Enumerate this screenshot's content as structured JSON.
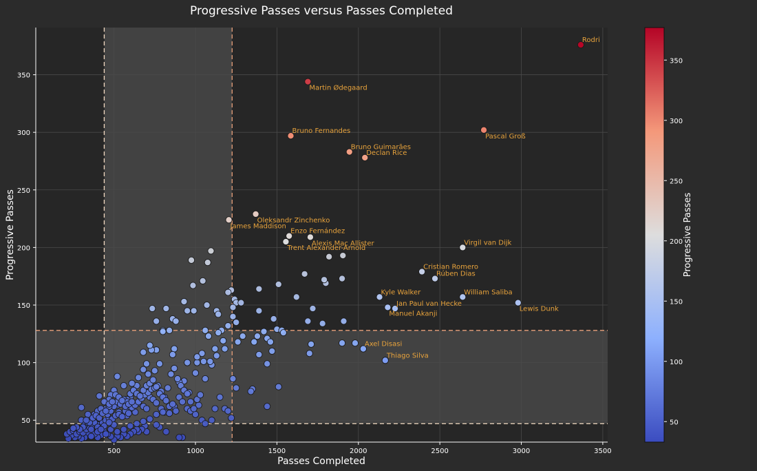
{
  "chart_data": {
    "type": "scatter",
    "title": "Progressive Passes versus Passes Completed",
    "xlabel": "Passes Completed",
    "ylabel": "Progressive Passes",
    "xlim": [
      20,
      3530
    ],
    "ylim": [
      31,
      391
    ],
    "xticks": [
      {
        "value": 500,
        "label": "500"
      },
      {
        "value": 1000,
        "label": "1000"
      },
      {
        "value": 1500,
        "label": "1500"
      },
      {
        "value": 2000,
        "label": "2000"
      },
      {
        "value": 2500,
        "label": "2500"
      },
      {
        "value": 3000,
        "label": "3000"
      },
      {
        "value": 3500,
        "label": "3500"
      }
    ],
    "yticks": [
      {
        "value": 50,
        "label": "50"
      },
      {
        "value": 100,
        "label": "100"
      },
      {
        "value": 150,
        "label": "150"
      },
      {
        "value": 200,
        "label": "200"
      },
      {
        "value": 250,
        "label": "250"
      },
      {
        "value": 300,
        "label": "300"
      },
      {
        "value": 350,
        "label": "350"
      }
    ],
    "grid": true,
    "colormap": "coolwarm",
    "colorbar": {
      "label": "Progressive Passes",
      "range": [
        33,
        377
      ],
      "ticks": [
        {
          "value": 50,
          "label": "50"
        },
        {
          "value": 100,
          "label": "100"
        },
        {
          "value": 150,
          "label": "150"
        },
        {
          "value": 200,
          "label": "200"
        },
        {
          "value": 250,
          "label": "250"
        },
        {
          "value": 300,
          "label": "300"
        },
        {
          "value": 350,
          "label": "350"
        }
      ]
    },
    "reference_lines": {
      "x": [
        440,
        1225
      ],
      "y": [
        47,
        128
      ]
    },
    "colors": {
      "background": "#2b2b2b",
      "plot_background": "#262626",
      "grid": "#4a4a4a",
      "shaded_band": "#5a5a5a",
      "label_text": "#e8a33c",
      "axis_text": "#ffffff",
      "ref_line_x_left": "#f5dcc4",
      "ref_line_other": "#e8a07a"
    },
    "labeled_points": [
      {
        "name": "Rodri",
        "x": 3365,
        "y": 376,
        "pos": "ne"
      },
      {
        "name": "Martin Ødegaard",
        "x": 1690,
        "y": 344,
        "pos": "se"
      },
      {
        "name": "Bruno Fernandes",
        "x": 1585,
        "y": 297,
        "pos": "ne"
      },
      {
        "name": "Pascal Groß",
        "x": 2770,
        "y": 302,
        "pos": "se"
      },
      {
        "name": "Bruno Guimarães",
        "x": 1945,
        "y": 283,
        "pos": "ne"
      },
      {
        "name": "Declan Rice",
        "x": 2040,
        "y": 278,
        "pos": "ne"
      },
      {
        "name": "Oleksandr Zinchenko",
        "x": 1370,
        "y": 229,
        "pos": "se"
      },
      {
        "name": "James Maddison",
        "x": 1205,
        "y": 224,
        "pos": "se"
      },
      {
        "name": "Enzo Fernández",
        "x": 1575,
        "y": 210,
        "pos": "ne"
      },
      {
        "name": "Trent Alexander-Arnold",
        "x": 1555,
        "y": 205,
        "pos": "se"
      },
      {
        "name": "Alexis Mac Allister",
        "x": 1705,
        "y": 209,
        "pos": "se"
      },
      {
        "name": "Virgil van Dijk",
        "x": 2640,
        "y": 200,
        "pos": "ne"
      },
      {
        "name": "Cristian Romero",
        "x": 2390,
        "y": 179,
        "pos": "ne"
      },
      {
        "name": "Rúben Dias",
        "x": 2470,
        "y": 173,
        "pos": "ne"
      },
      {
        "name": "Kyle Walker",
        "x": 2130,
        "y": 157,
        "pos": "ne"
      },
      {
        "name": "William Saliba",
        "x": 2640,
        "y": 157,
        "pos": "ne"
      },
      {
        "name": "Jan Paul van Hecke",
        "x": 2225,
        "y": 147,
        "pos": "ne"
      },
      {
        "name": "Manuel Akanji",
        "x": 2180,
        "y": 148,
        "pos": "se"
      },
      {
        "name": "Lewis Dunk",
        "x": 2980,
        "y": 152,
        "pos": "se"
      },
      {
        "name": "Axel Disasi",
        "x": 2030,
        "y": 112,
        "pos": "ne"
      },
      {
        "name": "Thiago Silva",
        "x": 2165,
        "y": 102,
        "pos": "ne"
      }
    ],
    "points": [
      [
        975,
        189
      ],
      [
        1095,
        197
      ],
      [
        1075,
        187
      ],
      [
        1045,
        171
      ],
      [
        985,
        167
      ],
      [
        1390,
        164
      ],
      [
        1220,
        163
      ],
      [
        1200,
        161
      ],
      [
        1510,
        168
      ],
      [
        1800,
        169
      ],
      [
        1790,
        172
      ],
      [
        1670,
        177
      ],
      [
        1900,
        173
      ],
      [
        1620,
        157
      ],
      [
        1240,
        155
      ],
      [
        1130,
        145
      ],
      [
        1140,
        142
      ],
      [
        1070,
        150
      ],
      [
        950,
        145
      ],
      [
        990,
        145
      ],
      [
        930,
        153
      ],
      [
        820,
        147
      ],
      [
        735,
        147
      ],
      [
        760,
        136
      ],
      [
        800,
        128
      ],
      [
        860,
        138
      ],
      [
        880,
        136
      ],
      [
        1250,
        152
      ],
      [
        1390,
        145
      ],
      [
        1480,
        138
      ],
      [
        1720,
        147
      ],
      [
        1230,
        140
      ],
      [
        1250,
        135
      ],
      [
        1260,
        118
      ],
      [
        1230,
        148
      ],
      [
        1280,
        152
      ],
      [
        1160,
        128
      ],
      [
        1170,
        119
      ],
      [
        1200,
        132
      ],
      [
        1180,
        112
      ],
      [
        1060,
        128
      ],
      [
        1140,
        126
      ],
      [
        1120,
        112
      ],
      [
        1130,
        106
      ],
      [
        1080,
        123
      ],
      [
        1100,
        98
      ],
      [
        1090,
        101
      ],
      [
        1050,
        101
      ],
      [
        1040,
        108
      ],
      [
        1010,
        100
      ],
      [
        1010,
        105
      ],
      [
        1060,
        86
      ],
      [
        1000,
        91
      ],
      [
        950,
        100
      ],
      [
        960,
        74
      ],
      [
        930,
        84
      ],
      [
        900,
        83
      ],
      [
        870,
        112
      ],
      [
        860,
        107
      ],
      [
        840,
        128
      ],
      [
        800,
        127
      ],
      [
        780,
        99
      ],
      [
        760,
        111
      ],
      [
        730,
        111
      ],
      [
        720,
        115
      ],
      [
        680,
        109
      ],
      [
        700,
        99
      ],
      [
        710,
        90
      ],
      [
        750,
        93
      ],
      [
        680,
        94
      ],
      [
        650,
        87
      ],
      [
        640,
        80
      ],
      [
        610,
        82
      ],
      [
        620,
        75
      ],
      [
        600,
        70
      ],
      [
        560,
        80
      ],
      [
        580,
        68
      ],
      [
        520,
        88
      ],
      [
        500,
        76
      ],
      [
        480,
        72
      ],
      [
        470,
        68
      ],
      [
        450,
        60
      ],
      [
        490,
        60
      ],
      [
        520,
        63
      ],
      [
        530,
        57
      ],
      [
        550,
        54
      ],
      [
        580,
        54
      ],
      [
        600,
        60
      ],
      [
        630,
        57
      ],
      [
        650,
        65
      ],
      [
        680,
        62
      ],
      [
        700,
        60
      ],
      [
        720,
        70
      ],
      [
        740,
        68
      ],
      [
        760,
        65
      ],
      [
        790,
        60
      ],
      [
        810,
        57
      ],
      [
        840,
        56
      ],
      [
        870,
        62
      ],
      [
        900,
        70
      ],
      [
        920,
        66
      ],
      [
        950,
        60
      ],
      [
        970,
        58
      ],
      [
        1000,
        55
      ],
      [
        1020,
        63
      ],
      [
        1040,
        50
      ],
      [
        1060,
        47
      ],
      [
        1100,
        50
      ],
      [
        1120,
        60
      ],
      [
        1150,
        70
      ],
      [
        1180,
        60
      ],
      [
        1200,
        58
      ],
      [
        1220,
        52
      ],
      [
        1230,
        86
      ],
      [
        1250,
        78
      ],
      [
        1290,
        123
      ],
      [
        1360,
        118
      ],
      [
        1350,
        77
      ],
      [
        1340,
        75
      ],
      [
        1390,
        107
      ],
      [
        1420,
        127
      ],
      [
        1440,
        121
      ],
      [
        1460,
        118
      ],
      [
        1470,
        110
      ],
      [
        1500,
        129
      ],
      [
        1530,
        128
      ],
      [
        1540,
        126
      ],
      [
        1440,
        99
      ],
      [
        1440,
        62
      ],
      [
        1510,
        79
      ],
      [
        1780,
        134
      ],
      [
        1900,
        117
      ],
      [
        1980,
        117
      ],
      [
        1910,
        136
      ],
      [
        1690,
        136
      ],
      [
        1710,
        116
      ],
      [
        1700,
        108
      ],
      [
        1380,
        123
      ],
      [
        920,
        35
      ],
      [
        900,
        35
      ],
      [
        820,
        40
      ],
      [
        780,
        44
      ],
      [
        760,
        46
      ],
      [
        700,
        40
      ],
      [
        690,
        45
      ],
      [
        670,
        42
      ],
      [
        650,
        40
      ],
      [
        640,
        42
      ],
      [
        620,
        40
      ],
      [
        600,
        38
      ],
      [
        580,
        36
      ],
      [
        560,
        38
      ],
      [
        540,
        35
      ],
      [
        520,
        36
      ],
      [
        500,
        33
      ],
      [
        480,
        36
      ],
      [
        460,
        38
      ],
      [
        440,
        40
      ],
      [
        420,
        37
      ],
      [
        400,
        35
      ],
      [
        380,
        38
      ],
      [
        360,
        36
      ],
      [
        340,
        38
      ],
      [
        320,
        35
      ],
      [
        300,
        34
      ],
      [
        280,
        36
      ],
      [
        260,
        35
      ],
      [
        240,
        37
      ],
      [
        220,
        34
      ],
      [
        210,
        38
      ],
      [
        230,
        40
      ],
      [
        250,
        41
      ],
      [
        270,
        38
      ],
      [
        290,
        40
      ],
      [
        310,
        39
      ],
      [
        330,
        42
      ],
      [
        350,
        44
      ],
      [
        370,
        45
      ],
      [
        390,
        47
      ],
      [
        410,
        46
      ],
      [
        430,
        48
      ],
      [
        450,
        50
      ],
      [
        470,
        52
      ],
      [
        490,
        51
      ],
      [
        510,
        54
      ],
      [
        530,
        55
      ],
      [
        550,
        53
      ],
      [
        570,
        58
      ],
      [
        590,
        56
      ],
      [
        610,
        61
      ],
      [
        630,
        63
      ],
      [
        650,
        66
      ],
      [
        670,
        69
      ],
      [
        690,
        72
      ],
      [
        710,
        74
      ],
      [
        730,
        77
      ],
      [
        750,
        78
      ],
      [
        770,
        80
      ],
      [
        790,
        75
      ],
      [
        810,
        70
      ],
      [
        830,
        78
      ],
      [
        850,
        90
      ],
      [
        870,
        95
      ],
      [
        890,
        86
      ],
      [
        910,
        80
      ],
      [
        930,
        76
      ],
      [
        950,
        73
      ],
      [
        970,
        66
      ],
      [
        990,
        60
      ],
      [
        1010,
        68
      ],
      [
        1030,
        72
      ],
      [
        300,
        50
      ],
      [
        320,
        46
      ],
      [
        340,
        48
      ],
      [
        360,
        52
      ],
      [
        380,
        55
      ],
      [
        400,
        58
      ],
      [
        420,
        60
      ],
      [
        300,
        61
      ],
      [
        340,
        55
      ],
      [
        380,
        48
      ],
      [
        360,
        42
      ],
      [
        400,
        44
      ],
      [
        440,
        45
      ],
      [
        460,
        55
      ],
      [
        480,
        58
      ],
      [
        500,
        62
      ],
      [
        520,
        66
      ],
      [
        540,
        64
      ],
      [
        560,
        68
      ],
      [
        580,
        66
      ],
      [
        600,
        73
      ],
      [
        620,
        76
      ],
      [
        640,
        73
      ],
      [
        660,
        71
      ],
      [
        680,
        76
      ],
      [
        700,
        80
      ],
      [
        720,
        82
      ],
      [
        740,
        85
      ],
      [
        760,
        79
      ],
      [
        780,
        73
      ],
      [
        800,
        70
      ],
      [
        820,
        67
      ],
      [
        840,
        62
      ],
      [
        860,
        64
      ],
      [
        880,
        58
      ],
      [
        410,
        71
      ],
      [
        440,
        66
      ],
      [
        470,
        62
      ],
      [
        350,
        48
      ],
      [
        330,
        50
      ],
      [
        310,
        44
      ],
      [
        290,
        42
      ],
      [
        270,
        44
      ],
      [
        250,
        43
      ],
      [
        370,
        52
      ],
      [
        390,
        54
      ],
      [
        410,
        52
      ],
      [
        430,
        56
      ],
      [
        450,
        58
      ],
      [
        470,
        64
      ],
      [
        490,
        66
      ],
      [
        510,
        72
      ],
      [
        530,
        70
      ],
      [
        550,
        67
      ],
      [
        570,
        62
      ],
      [
        590,
        64
      ],
      [
        610,
        66
      ],
      [
        360,
        36
      ],
      [
        400,
        40
      ],
      [
        520,
        40
      ],
      [
        560,
        42
      ],
      [
        600,
        45
      ],
      [
        640,
        47
      ],
      [
        680,
        49
      ],
      [
        720,
        51
      ],
      [
        760,
        55
      ],
      [
        800,
        57
      ],
      [
        420,
        42
      ],
      [
        450,
        38
      ],
      [
        480,
        42
      ],
      [
        500,
        46
      ],
      [
        470,
        48
      ],
      [
        2030,
        112
      ],
      [
        2165,
        102
      ],
      [
        1820,
        192
      ],
      [
        1905,
        193
      ]
    ]
  }
}
